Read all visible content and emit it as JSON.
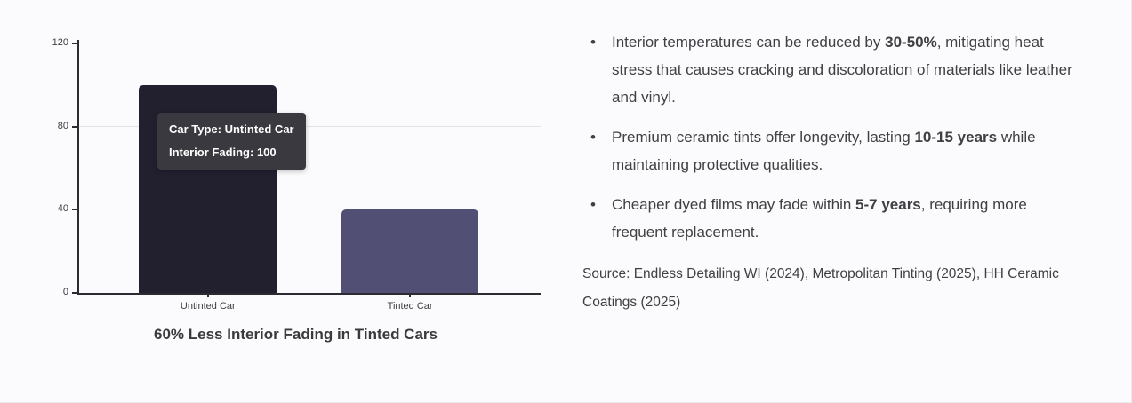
{
  "chart_data": {
    "type": "bar",
    "categories": [
      "Untinted Car",
      "Tinted Car"
    ],
    "values": [
      100,
      40
    ],
    "bar_colors": [
      "#221f2f",
      "#514f74"
    ],
    "title": "60% Less Interior Fading in Tinted Cars",
    "xlabel": "",
    "ylabel": "",
    "ylim": [
      0,
      120
    ],
    "yticks": [
      0,
      40,
      80,
      120
    ],
    "grid": true,
    "legend": "none",
    "tooltip": {
      "line1": "Car Type: Untinted Car",
      "line2": "Interior Fading: 100"
    }
  },
  "bullets": [
    {
      "segments": [
        {
          "text": "Interior temperatures can be reduced by ",
          "bold": false
        },
        {
          "text": "30-50%",
          "bold": true
        },
        {
          "text": ", mitigating heat stress that causes cracking and discoloration of materials like leather and vinyl.",
          "bold": false
        }
      ]
    },
    {
      "segments": [
        {
          "text": "Premium ceramic tints offer longevity, lasting ",
          "bold": false
        },
        {
          "text": "10-15 years",
          "bold": true
        },
        {
          "text": " while maintaining protective qualities.",
          "bold": false
        }
      ]
    },
    {
      "segments": [
        {
          "text": "Cheaper dyed films may fade within ",
          "bold": false
        },
        {
          "text": "5-7 years",
          "bold": true
        },
        {
          "text": ", requiring more frequent replacement.",
          "bold": false
        }
      ]
    }
  ],
  "source": "Source: Endless Detailing WI (2024), Metropolitan Tinting (2025), HH Ceramic Coatings (2025)",
  "colors": {
    "background": "#fbfbfd",
    "axis": "#2b2b31",
    "gridline": "#e4e4e8",
    "text": "#3f3f44",
    "tooltip_bg": "#3a393f",
    "tooltip_text": "#ffffff"
  }
}
